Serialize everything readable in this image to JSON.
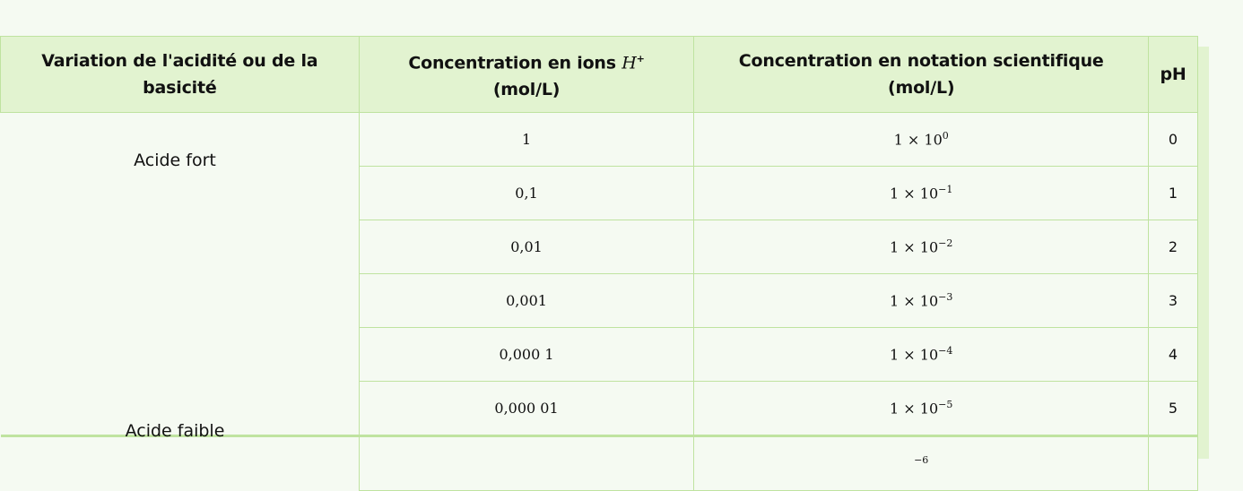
{
  "headers": {
    "variation": "Variation de l'acidité ou de la basicité",
    "conc_prefix": "Concentration en ions ",
    "conc_ion": "H",
    "conc_ion_sup": "+",
    "conc_unit": "(mol/L)",
    "sci": "Concentration en notation scientifique",
    "sci_unit": "(mol/L)",
    "ph": "pH"
  },
  "labels": {
    "strong": "Acide fort",
    "weak": "Acide faible"
  },
  "rows": [
    {
      "conc": "1",
      "base": "1 × 10",
      "exp": "0",
      "ph": "0"
    },
    {
      "conc": "0,1",
      "base": "1 × 10",
      "exp": "−1",
      "ph": "1"
    },
    {
      "conc": "0,01",
      "base": "1 × 10",
      "exp": "−2",
      "ph": "2"
    },
    {
      "conc": "0,001",
      "base": "1 × 10",
      "exp": "−3",
      "ph": "3"
    },
    {
      "conc": "0,000 1",
      "base": "1 × 10",
      "exp": "−4",
      "ph": "4"
    },
    {
      "conc": "0,000 01",
      "base": "1 × 10",
      "exp": "−5",
      "ph": "5"
    },
    {
      "conc": "",
      "base": "",
      "exp": "−6",
      "ph": ""
    }
  ],
  "colors": {
    "header_bg": "#e2f3d0",
    "border": "#bfe3a0",
    "page_bg": "#f5faf2"
  }
}
